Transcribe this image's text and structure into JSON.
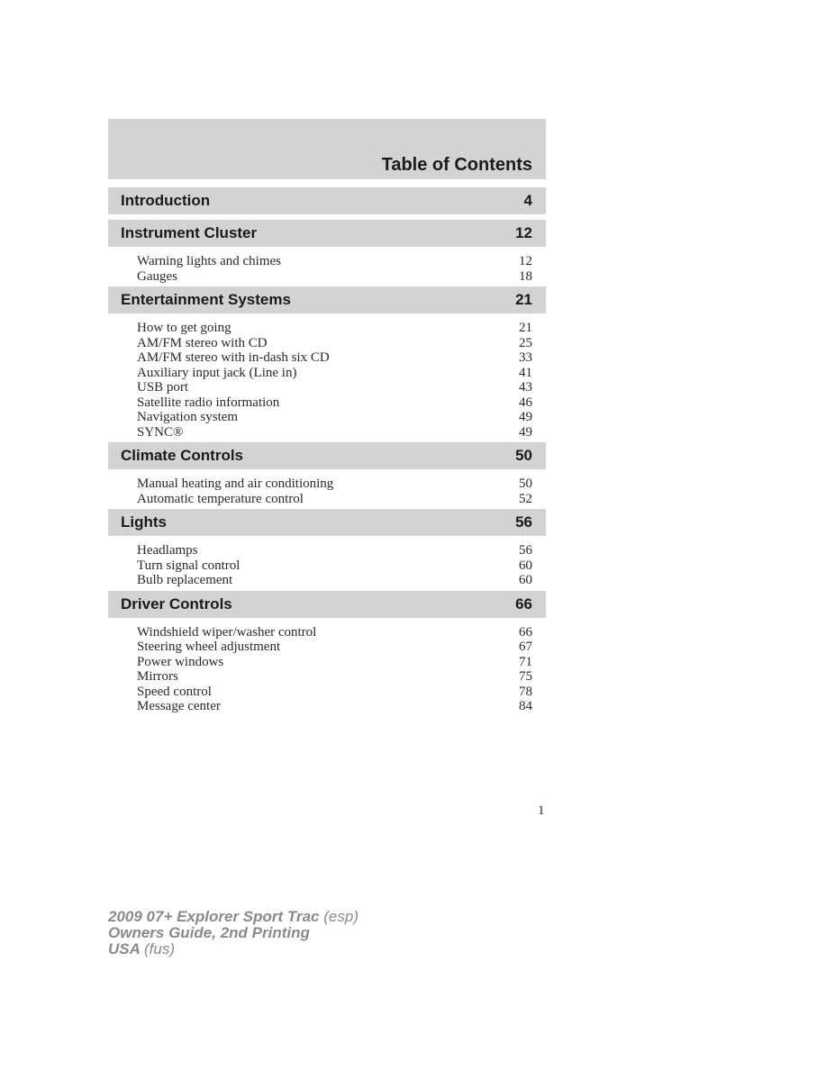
{
  "title": "Table of Contents",
  "sections": [
    {
      "label": "Introduction",
      "page": "4",
      "items": []
    },
    {
      "label": "Instrument Cluster",
      "page": "12",
      "items": [
        {
          "label": "Warning lights and chimes",
          "page": "12"
        },
        {
          "label": "Gauges",
          "page": "18"
        }
      ]
    },
    {
      "label": "Entertainment Systems",
      "page": "21",
      "items": [
        {
          "label": "How to get going",
          "page": "21"
        },
        {
          "label": "AM/FM stereo with CD",
          "page": "25"
        },
        {
          "label": "AM/FM stereo with in-dash six CD",
          "page": "33"
        },
        {
          "label": "Auxiliary input jack (Line in)",
          "page": "41"
        },
        {
          "label": "USB port",
          "page": "43"
        },
        {
          "label": "Satellite radio information",
          "page": "46"
        },
        {
          "label": "Navigation system",
          "page": "49"
        },
        {
          "label": "SYNC®",
          "page": "49"
        }
      ]
    },
    {
      "label": "Climate Controls",
      "page": "50",
      "items": [
        {
          "label": "Manual heating and air conditioning",
          "page": "50"
        },
        {
          "label": "Automatic temperature control",
          "page": "52"
        }
      ]
    },
    {
      "label": "Lights",
      "page": "56",
      "items": [
        {
          "label": "Headlamps",
          "page": "56"
        },
        {
          "label": "Turn signal control",
          "page": "60"
        },
        {
          "label": "Bulb replacement",
          "page": "60"
        }
      ]
    },
    {
      "label": "Driver Controls",
      "page": "66",
      "items": [
        {
          "label": "Windshield wiper/washer control",
          "page": "66"
        },
        {
          "label": "Steering wheel adjustment",
          "page": "67"
        },
        {
          "label": "Power windows",
          "page": "71"
        },
        {
          "label": "Mirrors",
          "page": "75"
        },
        {
          "label": "Speed control",
          "page": "78"
        },
        {
          "label": "Message center",
          "page": "84"
        }
      ]
    }
  ],
  "page_number": "1",
  "footer": {
    "line1_bold": "2009 07+ Explorer Sport Trac",
    "line1_light": "(esp)",
    "line2": "Owners Guide, 2nd Printing",
    "line3_bold": "USA",
    "line3_light": "(fus)"
  },
  "colors": {
    "bar_gray": "#d2d3d5",
    "footer_gray": "#8a8a8a"
  }
}
